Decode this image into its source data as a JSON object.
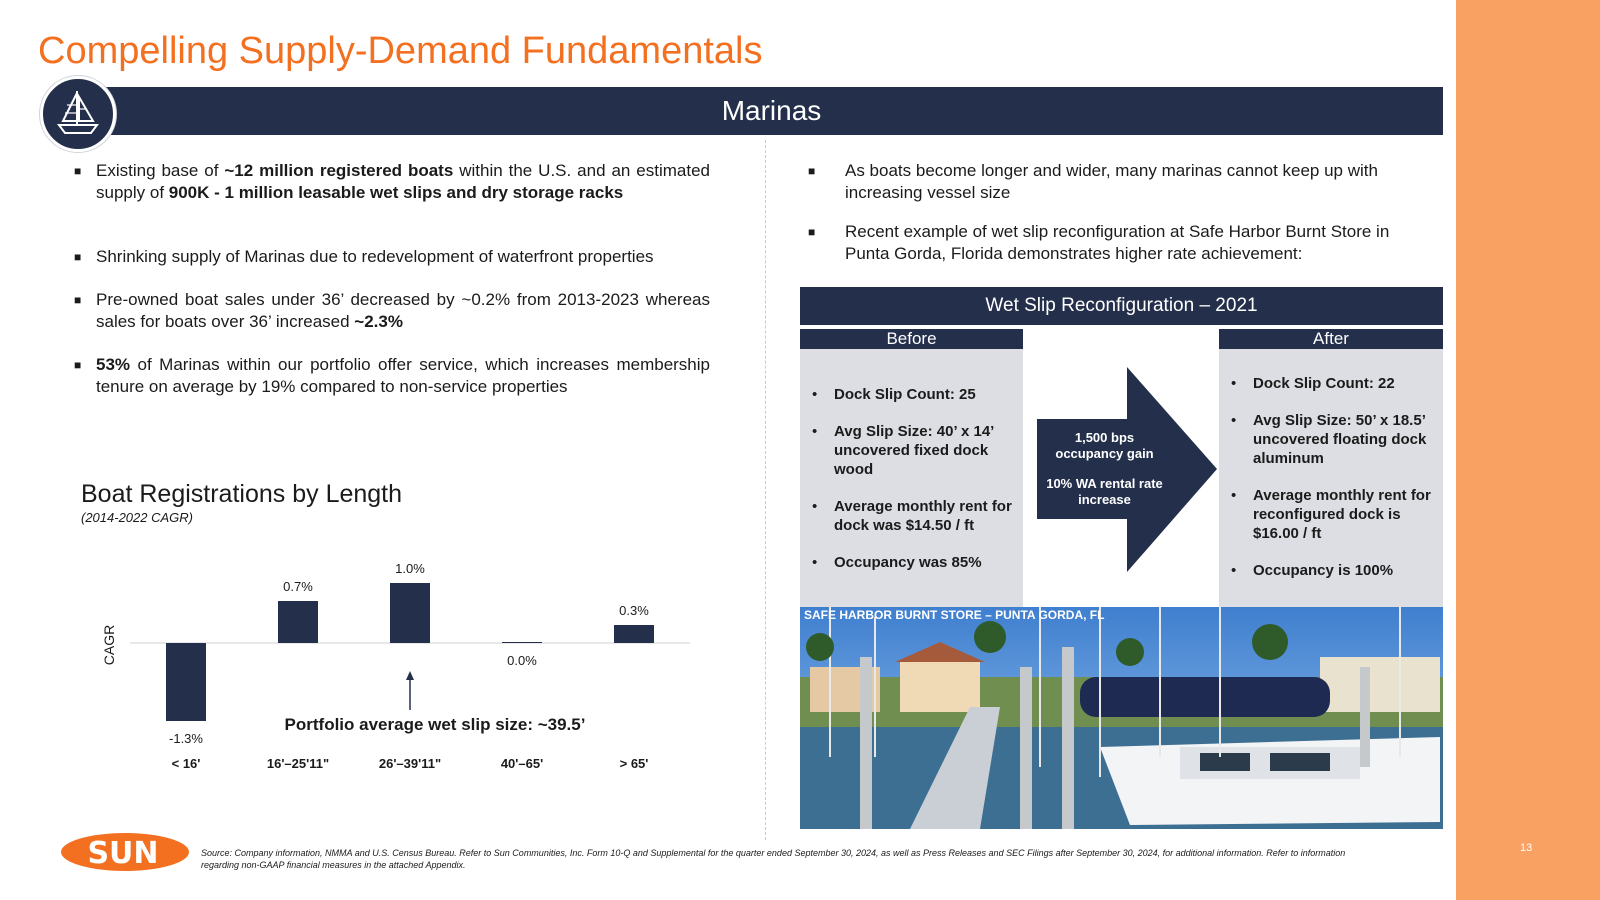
{
  "title": "Compelling Supply-Demand Fundamentals",
  "banner": "Marinas",
  "page_number": "13",
  "left_bullets": [
    {
      "parts": [
        {
          "t": "Existing base of ",
          "b": false
        },
        {
          "t": "~12 million registered boats",
          "b": true
        },
        {
          "t": " within the U.S. and an estimated supply of ",
          "b": false
        },
        {
          "t": "900K - 1 million leasable wet slips and dry storage racks",
          "b": true
        }
      ]
    },
    {
      "parts": [
        {
          "t": "Shrinking supply of Marinas due to redevelopment of waterfront properties",
          "b": false
        }
      ]
    },
    {
      "parts": [
        {
          "t": "Pre-owned boat sales under 36’ decreased by ~0.2% from 2013-2023 whereas sales for boats over 36’ increased ",
          "b": false
        },
        {
          "t": "~2.3%",
          "b": true
        }
      ]
    },
    {
      "parts": [
        {
          "t": "53%",
          "b": true
        },
        {
          "t": " of Marinas within our portfolio offer service, which increases membership tenure on average by 19% compared to non-service properties",
          "b": false
        }
      ]
    }
  ],
  "right_bullets": [
    "As boats become longer and wider, many marinas cannot keep up with increasing vessel size",
    "Recent example of wet slip reconfiguration at Safe Harbor Burnt Store in Punta Gorda, Florida demonstrates higher rate achievement:"
  ],
  "chart_data": {
    "type": "bar",
    "title": "Boat Registrations by Length",
    "subtitle": "(2014-2022 CAGR)",
    "ylabel": "CAGR",
    "xlabel": "",
    "categories": [
      "< 16'",
      "16'–25'11\"",
      "26'–39'11\"",
      "40'–65'",
      "> 65'"
    ],
    "values": [
      -1.3,
      0.7,
      1.0,
      0.0,
      0.3
    ],
    "value_labels": [
      "-1.3%",
      "0.7%",
      "1.0%",
      "0.0%",
      "0.3%"
    ],
    "ylim": [
      -1.5,
      1.2
    ],
    "color": "#232f4b",
    "annotation": "Portfolio average wet slip size: ~39.5’"
  },
  "reconfig": {
    "header": "Wet Slip Reconfiguration – 2021",
    "before_label": "Before",
    "after_label": "After",
    "before_items": [
      "Dock Slip Count: 25",
      "Avg Slip Size: 40’ x 14’ uncovered fixed dock wood",
      "Average monthly rent for dock was $14.50 / ft",
      "Occupancy was 85%"
    ],
    "after_items": [
      "Dock Slip Count: 22",
      "Avg Slip Size: 50’ x 18.5’ uncovered floating dock aluminum",
      "Average monthly rent for reconfigured dock is $16.00 / ft",
      "Occupancy is 100%"
    ],
    "arrow_line1": "1,500 bps occupancy gain",
    "arrow_line2": "10% WA rental rate increase"
  },
  "photo_caption": "SAFE HARBOR BURNT STORE – PUNTA GORDA, FL",
  "logo_text": "SUN",
  "source": "Source: Company information, NMMA and U.S. Census Bureau. Refer to Sun Communities, Inc. Form 10-Q and Supplemental for the quarter ended September 30, 2024, as well as Press Releases and SEC Filings after September 30, 2024, for additional information. Refer to information regarding non-GAAP financial measures in the attached Appendix.",
  "colors": {
    "accent": "#f37021",
    "navy": "#232f4b",
    "band": "#f9a163",
    "panel": "#dcdee4"
  }
}
